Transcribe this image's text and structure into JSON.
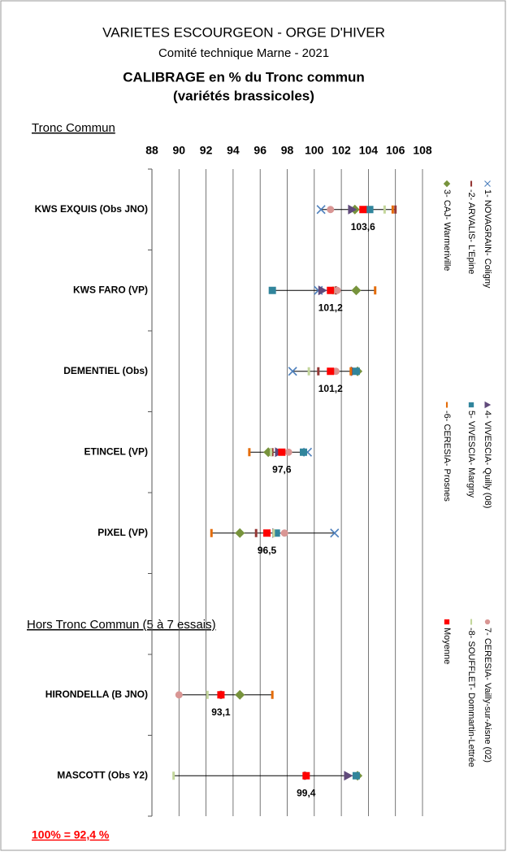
{
  "chart_data": {
    "type": "dot",
    "title": "VARIETES ESCOURGEON - ORGE D'HIVER",
    "subtitle": "Comité technique Marne - 2021",
    "heading": "CALIBRAGE en % du Tronc commun",
    "heading2": "(variétés brassicoles)",
    "section1": "Tronc Commun",
    "section2": "Hors Tronc Commun (5 à 7 essais)",
    "footnote": "100% = 92,4 %",
    "categories": [
      "KWS EXQUIS (Obs JNO)",
      "KWS FARO (VP)",
      "DEMENTIEL (Obs)",
      "ETINCEL (VP)",
      "PIXEL (VP)",
      null,
      "HIRONDELLA (B JNO)",
      "MASCOTT (Obs Y2)"
    ],
    "xlim": [
      88,
      108
    ],
    "xticks": [
      88,
      90,
      92,
      94,
      96,
      98,
      100,
      102,
      104,
      106,
      108
    ],
    "grid": true,
    "series": [
      {
        "name": "1- NOVAGRAIN- Coligny",
        "color": "#4f81bd",
        "marker": "x",
        "values": [
          100.5,
          100.3,
          98.4,
          99.5,
          101.5,
          null,
          null,
          null
        ]
      },
      {
        "name": "-2- ARVALIS- L'Epine",
        "color": "#953735",
        "marker": "dash",
        "values": [
          106.0,
          101.6,
          100.3,
          96.9,
          95.7,
          null,
          93.1,
          99.3
        ]
      },
      {
        "name": "3- CAJ- Warmeriville",
        "color": "#77933c",
        "marker": "diamond",
        "values": [
          103.0,
          103.1,
          103.2,
          96.6,
          94.5,
          null,
          94.5,
          103.2
        ]
      },
      {
        "name": "4- VIVESCIA- Quilly (08)",
        "color": "#604a7b",
        "marker": "triangle",
        "values": [
          102.8,
          100.6,
          103.0,
          97.4,
          97.2,
          null,
          null,
          102.5
        ]
      },
      {
        "name": "5- VIVESCIA- Margny",
        "color": "#31859c",
        "marker": "square",
        "values": [
          104.1,
          96.9,
          103.1,
          99.2,
          97.2,
          null,
          null,
          103.1
        ]
      },
      {
        "name": "-6- CERESIA- Prosnes",
        "color": "#e46c0a",
        "marker": "dash",
        "values": [
          105.8,
          104.5,
          102.7,
          95.2,
          92.4,
          null,
          96.9,
          null
        ]
      },
      {
        "name": "7- CERESIA- Vailly-sur-Aisne (02)",
        "color": "#d99694",
        "marker": "circle",
        "values": [
          101.2,
          101.7,
          101.6,
          98.1,
          97.8,
          null,
          90.0,
          null
        ]
      },
      {
        "name": "-8- SOUFFLET- Dommartin-Lettrée",
        "color": "#c3d69b",
        "marker": "dash",
        "values": [
          105.2,
          101.4,
          99.6,
          96.8,
          97.0,
          null,
          92.1,
          89.6
        ]
      },
      {
        "name": "Moyenne",
        "color": "#ff0000",
        "marker": "square",
        "values": [
          103.6,
          101.2,
          101.2,
          97.6,
          96.5,
          null,
          93.1,
          99.4
        ],
        "value_labels": [
          "103,6",
          "101,2",
          "101,2",
          "97,6",
          "96,5",
          null,
          "93,1",
          "99,4"
        ]
      }
    ]
  }
}
